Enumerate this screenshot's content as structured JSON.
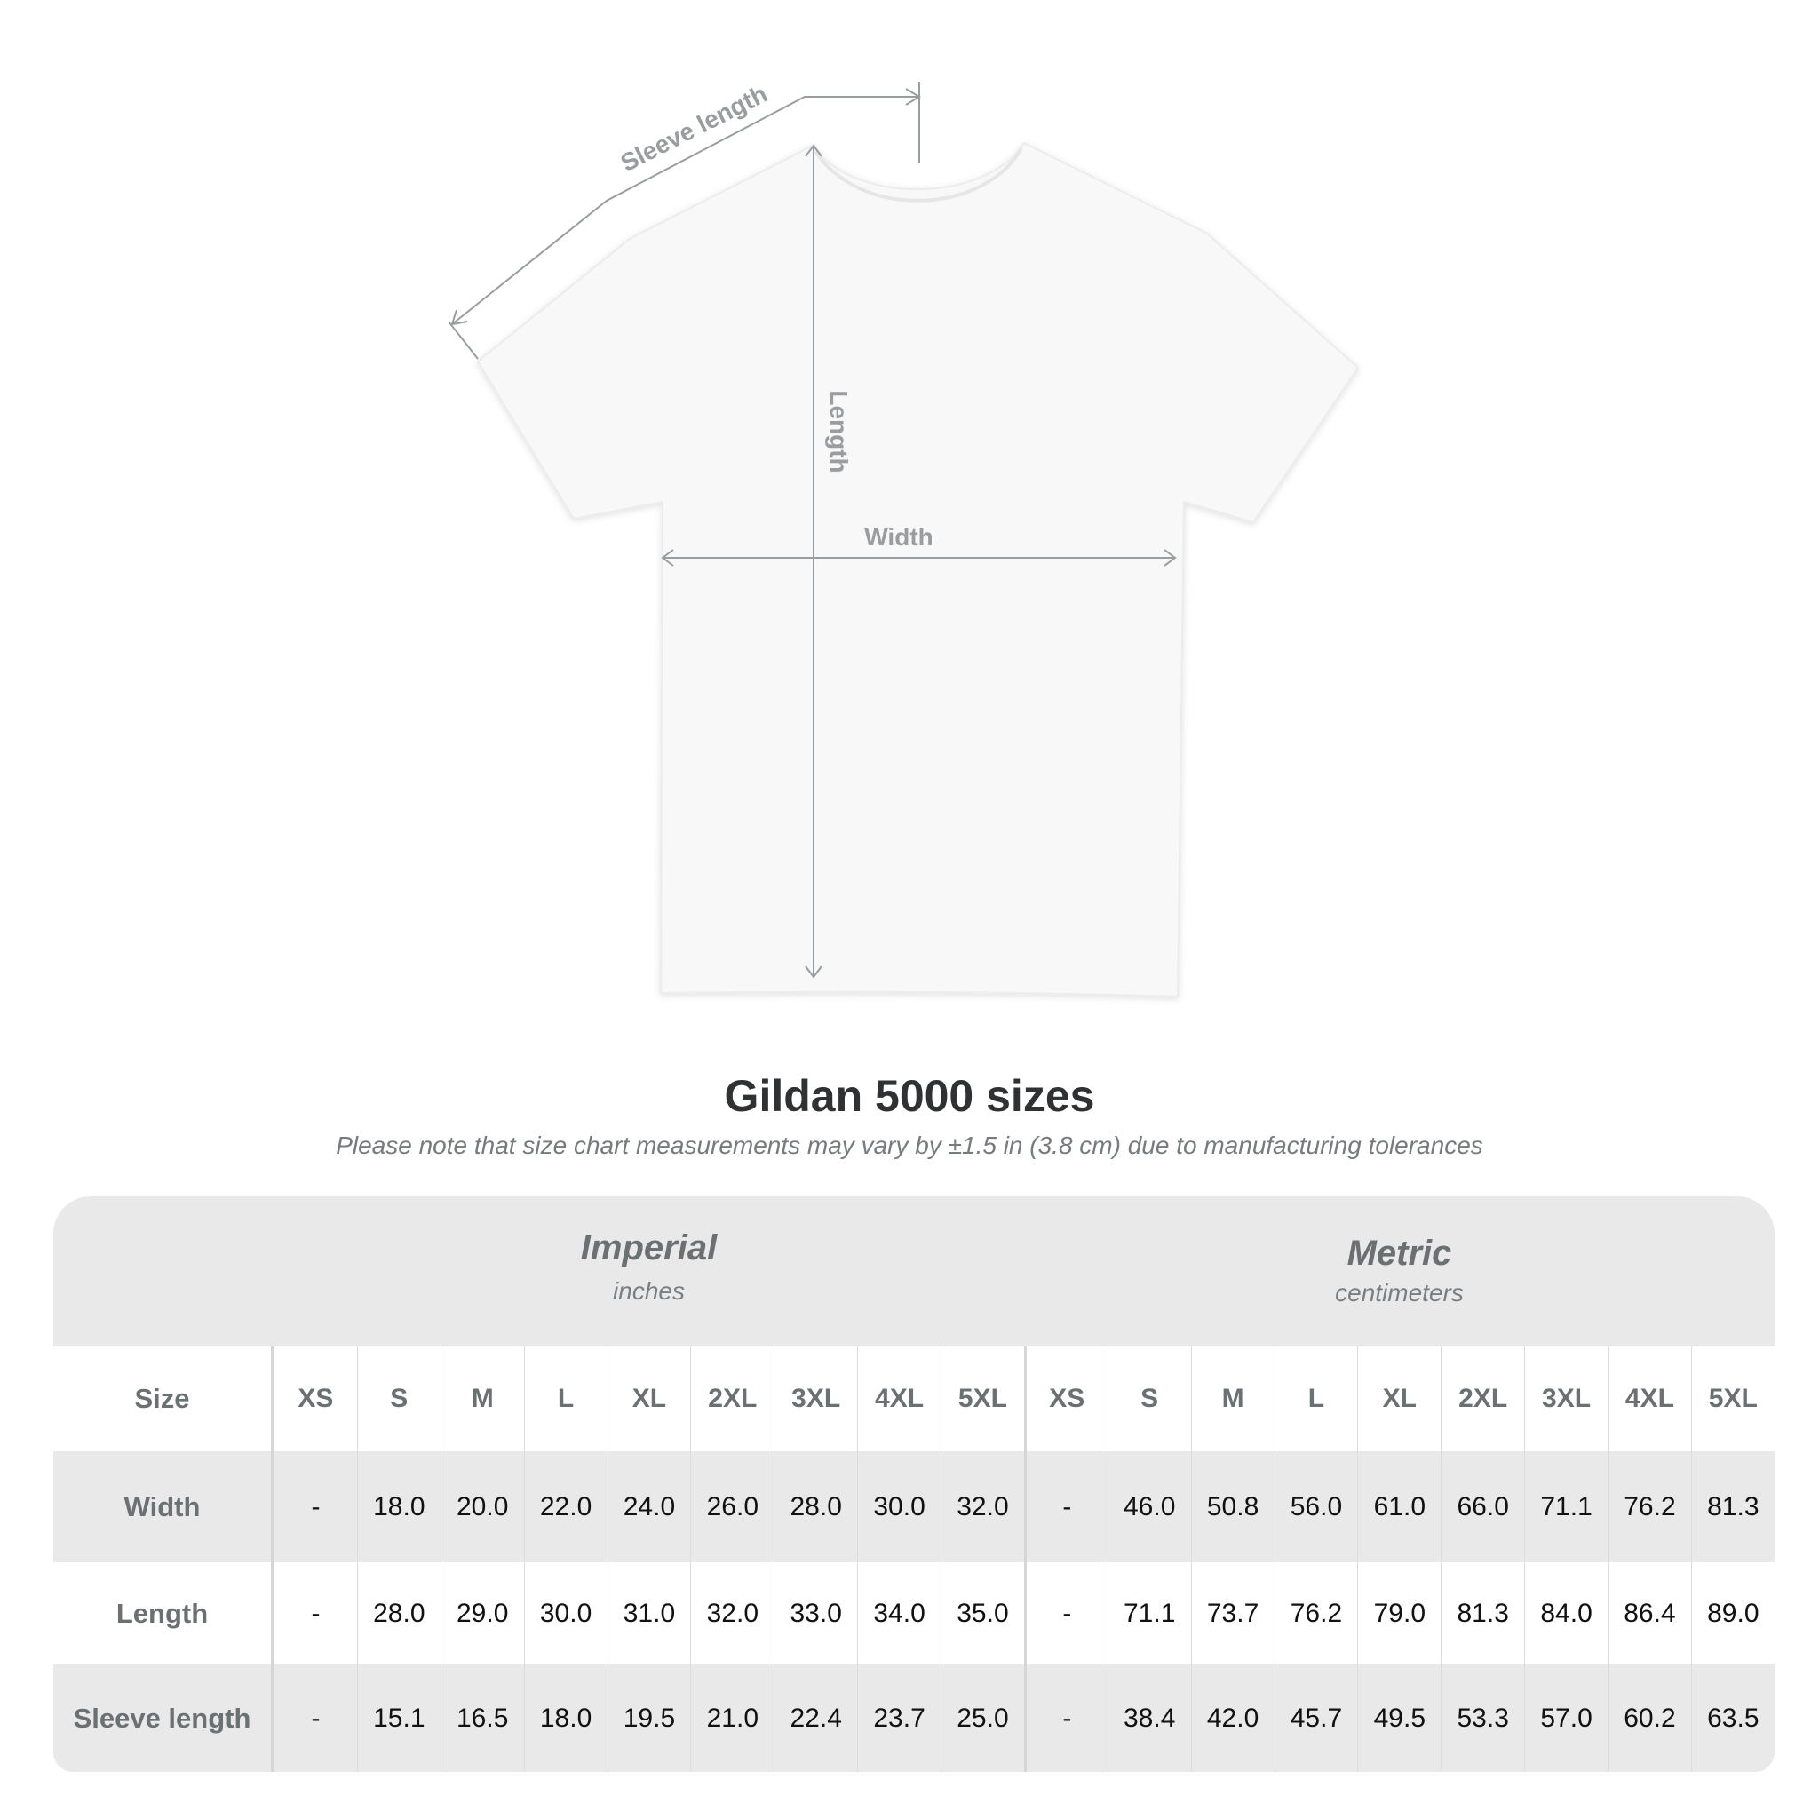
{
  "diagram": {
    "labels": {
      "sleeve": "Sleeve length",
      "length": "Length",
      "width": "Width"
    },
    "colors": {
      "shirt": "#f7f7f7",
      "lines": "#9a9d9f"
    }
  },
  "title": "Gildan 5000 sizes",
  "note": "Please note that size chart measurements may vary by ±1.5 in (3.8 cm) due to manufacturing tolerances",
  "table": {
    "imperial": {
      "name": "Imperial",
      "unit": "inches"
    },
    "metric": {
      "name": "Metric",
      "unit": "centimeters"
    },
    "size_label": "Size",
    "sizes": [
      "XS",
      "S",
      "M",
      "L",
      "XL",
      "2XL",
      "3XL",
      "4XL",
      "5XL"
    ],
    "rows": [
      {
        "label": "Width",
        "imperial": [
          "-",
          "18.0",
          "20.0",
          "22.0",
          "24.0",
          "26.0",
          "28.0",
          "30.0",
          "32.0"
        ],
        "metric": [
          "-",
          "46.0",
          "50.8",
          "56.0",
          "61.0",
          "66.0",
          "71.1",
          "76.2",
          "81.3"
        ]
      },
      {
        "label": "Length",
        "imperial": [
          "-",
          "28.0",
          "29.0",
          "30.0",
          "31.0",
          "32.0",
          "33.0",
          "34.0",
          "35.0"
        ],
        "metric": [
          "-",
          "71.1",
          "73.7",
          "76.2",
          "79.0",
          "81.3",
          "84.0",
          "86.4",
          "89.0"
        ]
      },
      {
        "label": "Sleeve length",
        "imperial": [
          "-",
          "15.1",
          "16.5",
          "18.0",
          "19.5",
          "21.0",
          "22.4",
          "23.7",
          "25.0"
        ],
        "metric": [
          "-",
          "38.4",
          "42.0",
          "45.7",
          "49.5",
          "53.3",
          "57.0",
          "60.2",
          "63.5"
        ]
      }
    ]
  }
}
